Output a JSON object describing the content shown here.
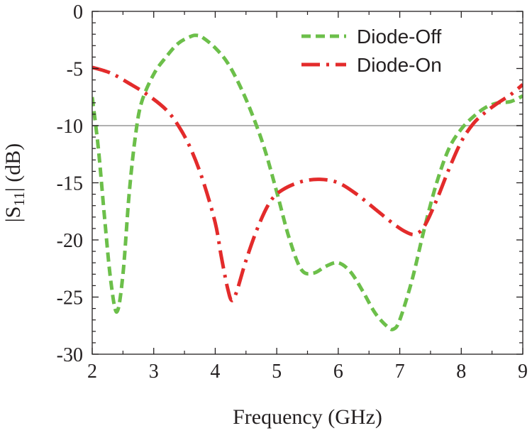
{
  "chart_data": {
    "type": "line",
    "title": "",
    "xlabel": "Frequency (GHz)",
    "ylabel_main": "|S",
    "ylabel_sub": "11",
    "ylabel_tail": "| (dB)",
    "xlim": [
      2,
      9
    ],
    "ylim": [
      -30,
      0
    ],
    "x_ticks": [
      2,
      3,
      4,
      5,
      6,
      7,
      8,
      9
    ],
    "y_ticks": [
      0,
      -5,
      -10,
      -15,
      -20,
      -25,
      -30
    ],
    "x_tick_labels": [
      "2",
      "3",
      "4",
      "5",
      "6",
      "7",
      "8",
      "9"
    ],
    "y_tick_labels": [
      "0",
      "-5",
      "-10",
      "-15",
      "-20",
      "-25",
      "-30"
    ],
    "reference_line": {
      "y": -10,
      "color": "#b0b0b0"
    },
    "legend_position": "top-right",
    "series": [
      {
        "name": "Diode-Off",
        "color": "#6cbf4a",
        "dash": "dashed",
        "points": [
          [
            2.0,
            -7.5
          ],
          [
            2.1,
            -12.0
          ],
          [
            2.2,
            -18.0
          ],
          [
            2.3,
            -23.5
          ],
          [
            2.4,
            -26.3
          ],
          [
            2.5,
            -23.0
          ],
          [
            2.6,
            -16.0
          ],
          [
            2.7,
            -11.0
          ],
          [
            2.8,
            -8.0
          ],
          [
            3.0,
            -5.5
          ],
          [
            3.2,
            -4.0
          ],
          [
            3.4,
            -2.8
          ],
          [
            3.6,
            -2.2
          ],
          [
            3.7,
            -2.1
          ],
          [
            3.8,
            -2.3
          ],
          [
            4.0,
            -3.2
          ],
          [
            4.2,
            -4.5
          ],
          [
            4.4,
            -6.5
          ],
          [
            4.6,
            -9.0
          ],
          [
            4.8,
            -12.0
          ],
          [
            5.0,
            -15.8
          ],
          [
            5.2,
            -19.8
          ],
          [
            5.4,
            -22.6
          ],
          [
            5.6,
            -22.9
          ],
          [
            5.8,
            -22.3
          ],
          [
            6.0,
            -22.0
          ],
          [
            6.2,
            -22.8
          ],
          [
            6.4,
            -24.5
          ],
          [
            6.6,
            -26.4
          ],
          [
            6.8,
            -27.6
          ],
          [
            6.9,
            -27.8
          ],
          [
            7.0,
            -27.0
          ],
          [
            7.2,
            -23.5
          ],
          [
            7.4,
            -19.0
          ],
          [
            7.6,
            -15.0
          ],
          [
            7.8,
            -12.0
          ],
          [
            8.0,
            -10.3
          ],
          [
            8.2,
            -9.2
          ],
          [
            8.4,
            -8.4
          ],
          [
            8.6,
            -8.0
          ],
          [
            8.8,
            -7.9
          ],
          [
            9.0,
            -7.4
          ]
        ]
      },
      {
        "name": "Diode-On",
        "color": "#e32b2b",
        "dash": "dashdot",
        "points": [
          [
            2.0,
            -4.9
          ],
          [
            2.3,
            -5.4
          ],
          [
            2.6,
            -6.3
          ],
          [
            2.9,
            -7.3
          ],
          [
            3.2,
            -8.6
          ],
          [
            3.4,
            -10.0
          ],
          [
            3.6,
            -12.0
          ],
          [
            3.8,
            -14.8
          ],
          [
            4.0,
            -18.5
          ],
          [
            4.1,
            -21.5
          ],
          [
            4.2,
            -24.2
          ],
          [
            4.27,
            -25.3
          ],
          [
            4.35,
            -24.5
          ],
          [
            4.5,
            -21.8
          ],
          [
            4.7,
            -18.8
          ],
          [
            4.9,
            -16.6
          ],
          [
            5.1,
            -15.6
          ],
          [
            5.4,
            -14.9
          ],
          [
            5.7,
            -14.7
          ],
          [
            6.0,
            -15.0
          ],
          [
            6.3,
            -16.0
          ],
          [
            6.6,
            -17.3
          ],
          [
            6.9,
            -18.6
          ],
          [
            7.1,
            -19.3
          ],
          [
            7.25,
            -19.5
          ],
          [
            7.4,
            -18.8
          ],
          [
            7.6,
            -16.5
          ],
          [
            7.8,
            -13.8
          ],
          [
            8.0,
            -11.4
          ],
          [
            8.2,
            -9.8
          ],
          [
            8.4,
            -8.8
          ],
          [
            8.6,
            -8.0
          ],
          [
            8.8,
            -7.3
          ],
          [
            9.0,
            -6.4
          ]
        ]
      }
    ]
  }
}
